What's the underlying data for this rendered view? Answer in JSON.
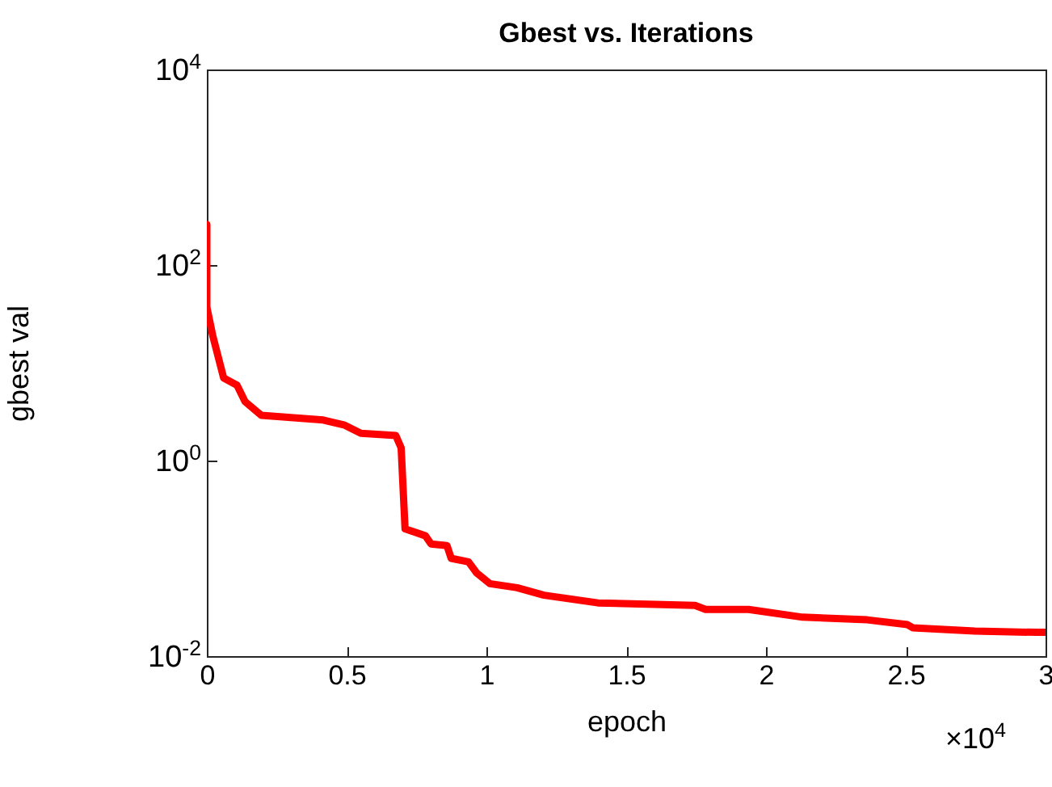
{
  "chart_data": {
    "type": "line",
    "title": "Gbest vs. Iterations",
    "xlabel": "epoch",
    "ylabel": "gbest val",
    "x": [
      0,
      0,
      0.021,
      0.06,
      0.108,
      0.137,
      0.195,
      0.416,
      0.493,
      0.551,
      0.676,
      0.695,
      0.709,
      0.782,
      0.802,
      0.859,
      0.874,
      0.936,
      0.965,
      1.013,
      1.11,
      1.206,
      1.399,
      1.746,
      1.784,
      1.938,
      2.131,
      2.362,
      2.506,
      2.525,
      2.747,
      2.968,
      3
    ],
    "series": [
      {
        "color": "#ff0000",
        "values": [
          260,
          37,
          19,
          7,
          5.9,
          4,
          2.9,
          2.6,
          2.3,
          1.9,
          1.8,
          1.35,
          0.2,
          0.17,
          0.14,
          0.135,
          0.1,
          0.092,
          0.071,
          0.055,
          0.05,
          0.042,
          0.035,
          0.033,
          0.03,
          0.03,
          0.025,
          0.0235,
          0.021,
          0.0195,
          0.018,
          0.0175,
          0.0175
        ]
      }
    ],
    "log": "y",
    "xlim": [
      0,
      3
    ],
    "ylim": [
      0.01,
      10000
    ],
    "xticks": [
      0,
      0.5,
      1,
      1.5,
      2,
      2.5,
      3
    ],
    "yticks": [
      {
        "value": 0.01,
        "label": "10$^{-2}$"
      },
      {
        "value": 1,
        "label": "10$^{0}$"
      },
      {
        "value": 100,
        "label": "10$^{2}$"
      },
      {
        "value": 10000,
        "label": "10$^{4}$"
      }
    ],
    "annotations": [
      "×10$^{4}$"
    ],
    "grid": false,
    "legend": false,
    "marker": "none",
    "line_style": "solid"
  }
}
